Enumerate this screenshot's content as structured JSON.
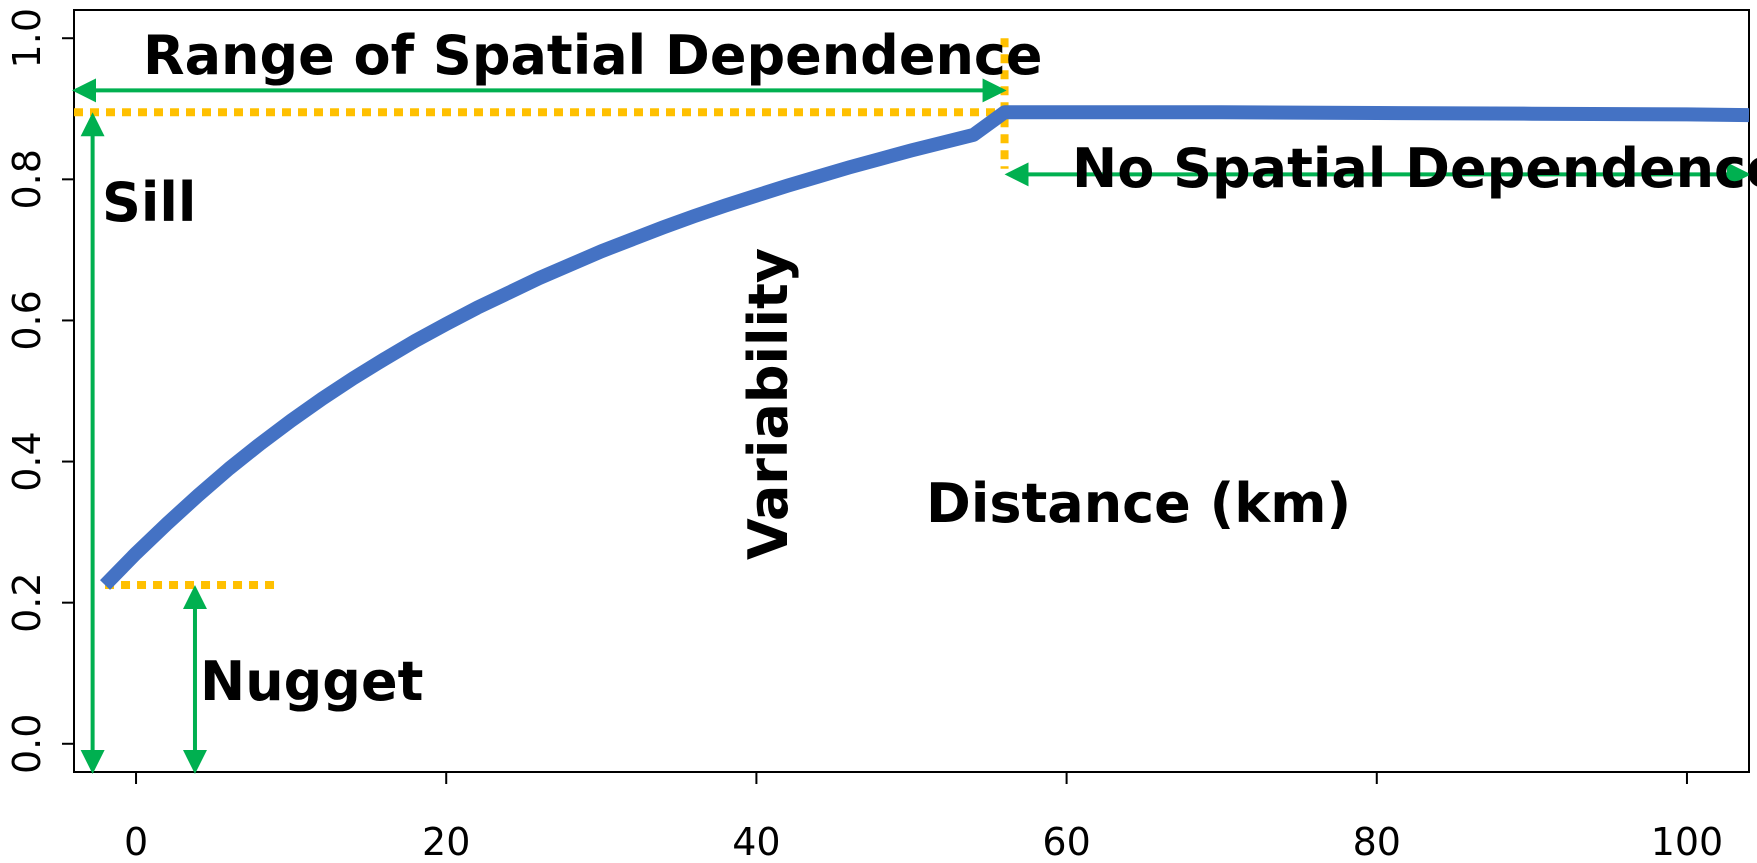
{
  "chart_data": {
    "type": "line",
    "title": "",
    "xlabel": "Distance (km)",
    "ylabel": "Variability",
    "xlim": [
      -4,
      104
    ],
    "ylim": [
      -0.04,
      1.04
    ],
    "x_ticks": [
      0,
      20,
      40,
      60,
      80,
      100
    ],
    "x_tick_labels": [
      "0",
      "20",
      "40",
      "60",
      "80",
      "100"
    ],
    "y_ticks": [
      0.0,
      0.2,
      0.4,
      0.6,
      0.8,
      1.0
    ],
    "y_tick_labels": [
      "0.0",
      "0.2",
      "0.4",
      "0.6",
      "0.8",
      "1.0"
    ],
    "grid": false,
    "model": {
      "nugget": 0.225,
      "sill": 0.895,
      "range_km": 56
    },
    "series": [
      {
        "color": "#4472C4",
        "x": [
          -2,
          0,
          2,
          4,
          6,
          8,
          10,
          12,
          14,
          16,
          18,
          20,
          22,
          24,
          26,
          28,
          30,
          32,
          34,
          36,
          38,
          40,
          42,
          44,
          46,
          48,
          50,
          52,
          54,
          56,
          60,
          70,
          80,
          90,
          100,
          104
        ],
        "y": [
          0.225,
          0.27,
          0.312,
          0.352,
          0.39,
          0.425,
          0.458,
          0.489,
          0.518,
          0.545,
          0.571,
          0.595,
          0.618,
          0.639,
          0.66,
          0.679,
          0.698,
          0.715,
          0.732,
          0.748,
          0.763,
          0.777,
          0.791,
          0.804,
          0.817,
          0.829,
          0.841,
          0.852,
          0.863,
          0.895,
          0.895,
          0.895,
          0.894,
          0.893,
          0.892,
          0.891
        ]
      }
    ],
    "annotations": {
      "range": "Range of Spatial Dependence",
      "no_dependence": "No Spatial Dependence",
      "sill": "Sill",
      "nugget": "Nugget"
    },
    "annotation_colors": {
      "arrow": "#00B050",
      "guide": "#FFC000"
    }
  }
}
